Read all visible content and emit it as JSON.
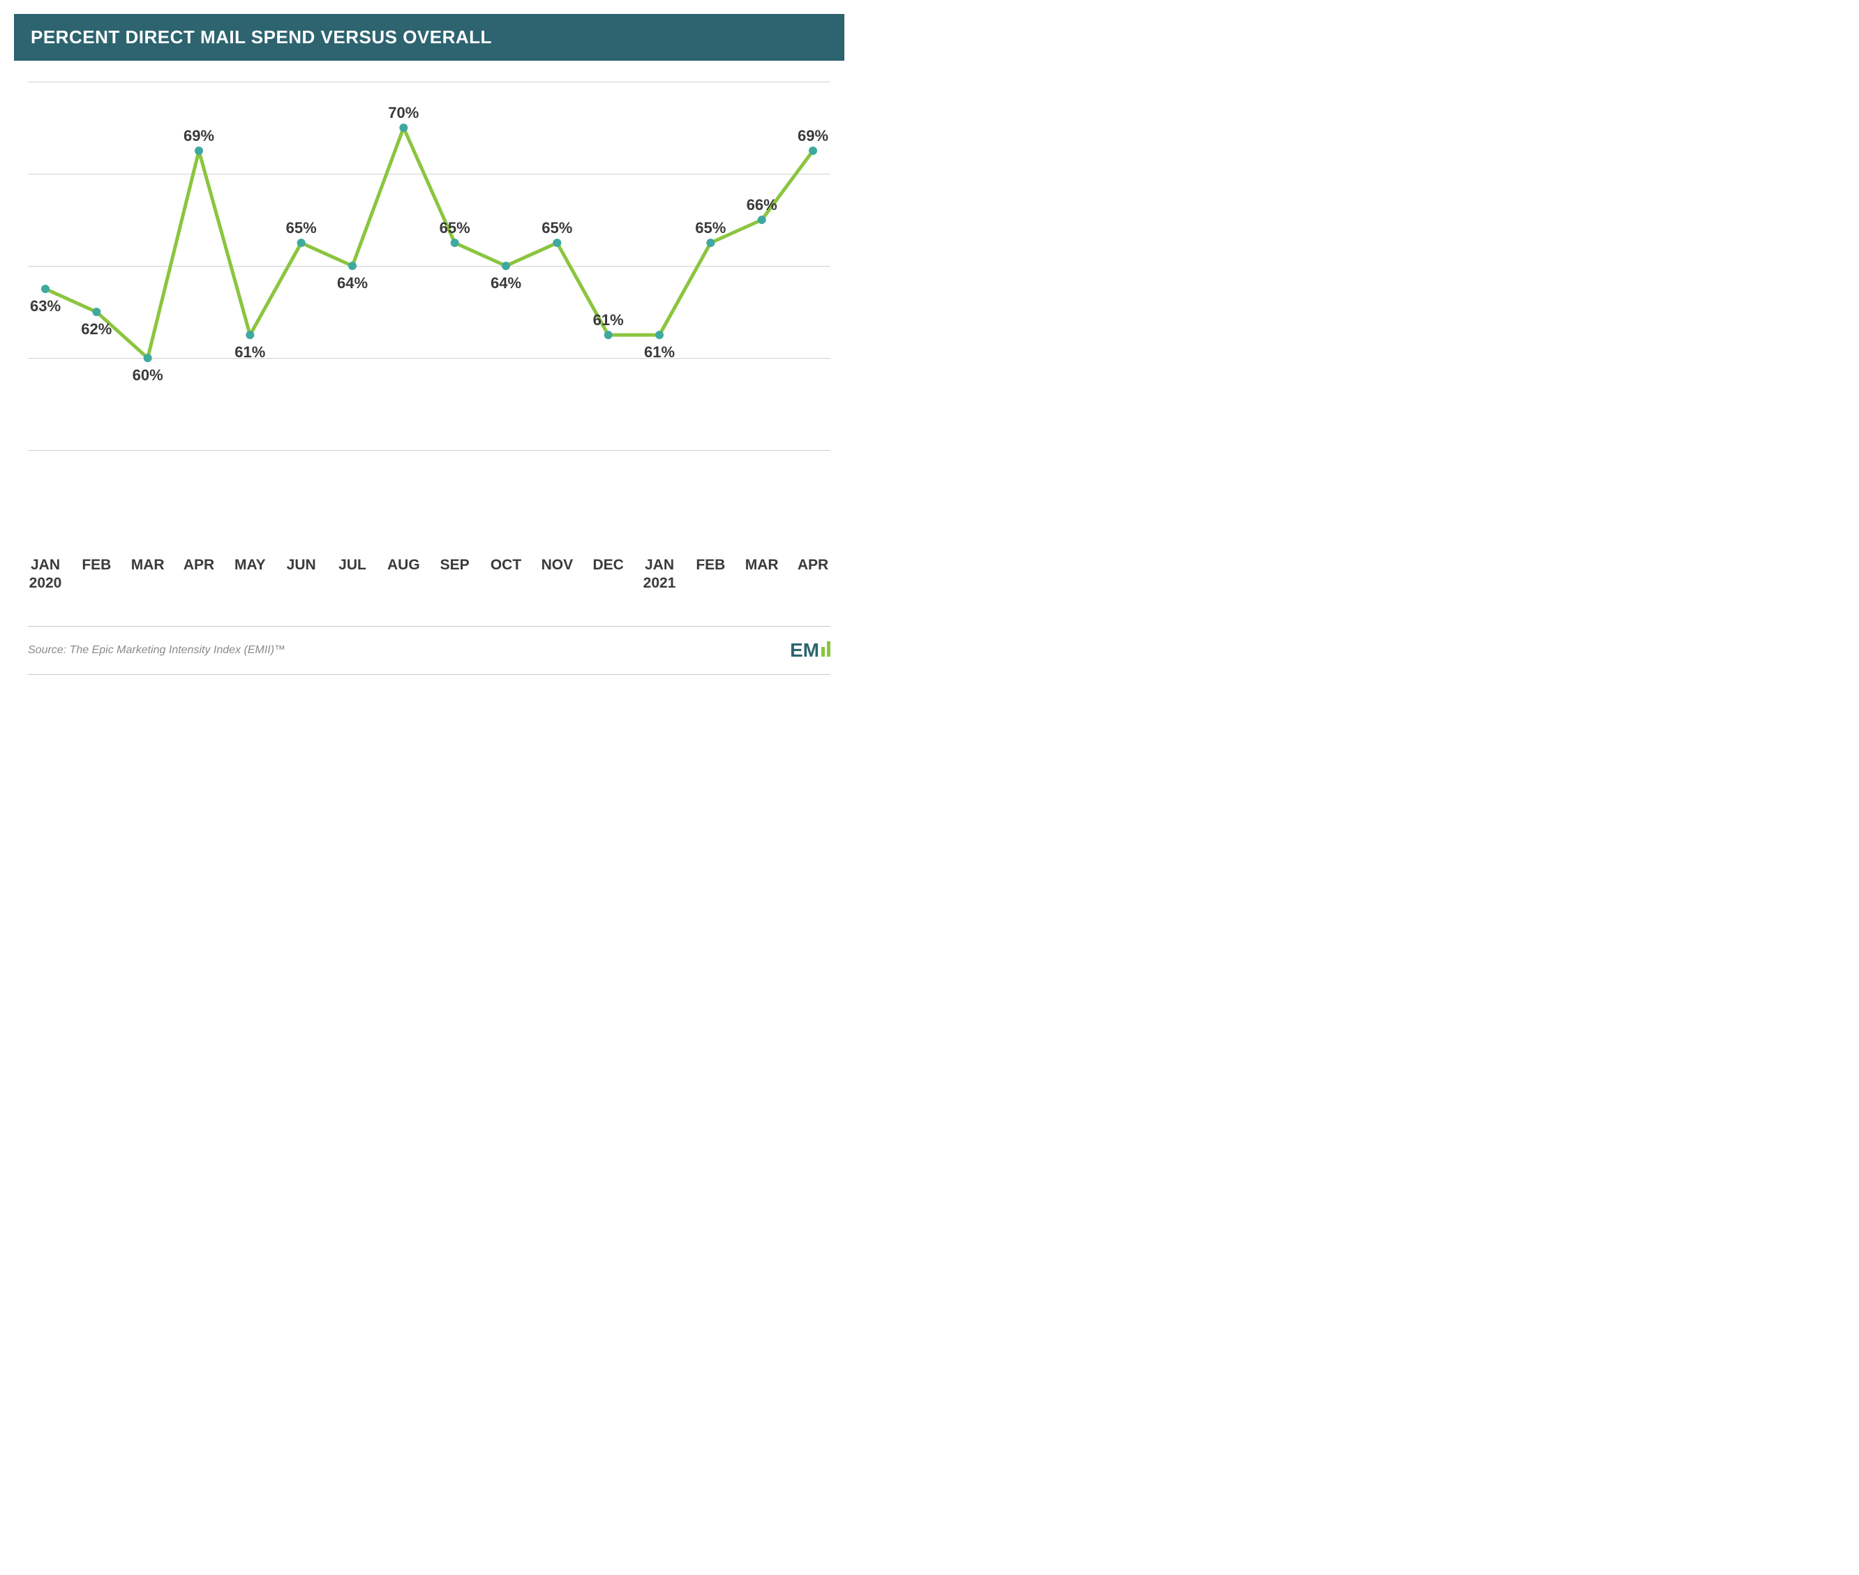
{
  "title": "PERCENT DIRECT MAIL SPEND VERSUS OVERALL",
  "source": "Source: The Epic Marketing Intensity Index (EMII)™",
  "logo_text": "EM",
  "chart": {
    "type": "line",
    "line_color": "#8bc53f",
    "line_width": 5,
    "marker_color": "#3fa9a0",
    "marker_radius": 6,
    "background_color": "#ffffff",
    "grid_color": "#d0d0d0",
    "label_color": "#3a3a3a",
    "title_bar_color": "#2d6470",
    "title_text_color": "#ffffff",
    "ylim": [
      52,
      72
    ],
    "gridlines": [
      56,
      60,
      64,
      68,
      72
    ],
    "label_fontsize": 22,
    "axis_fontsize": 21,
    "points": [
      {
        "x_label": "JAN",
        "x_sub": "2020",
        "value": 63,
        "label": "63%",
        "label_pos": "below"
      },
      {
        "x_label": "FEB",
        "value": 62,
        "label": "62%",
        "label_pos": "below"
      },
      {
        "x_label": "MAR",
        "value": 60,
        "label": "60%",
        "label_pos": "below"
      },
      {
        "x_label": "APR",
        "value": 69,
        "label": "69%",
        "label_pos": "above"
      },
      {
        "x_label": "MAY",
        "value": 61,
        "label": "61%",
        "label_pos": "below"
      },
      {
        "x_label": "JUN",
        "value": 65,
        "label": "65%",
        "label_pos": "above"
      },
      {
        "x_label": "JUL",
        "value": 64,
        "label": "64%",
        "label_pos": "below"
      },
      {
        "x_label": "AUG",
        "value": 70,
        "label": "70%",
        "label_pos": "above"
      },
      {
        "x_label": "SEP",
        "value": 65,
        "label": "65%",
        "label_pos": "above"
      },
      {
        "x_label": "OCT",
        "value": 64,
        "label": "64%",
        "label_pos": "below"
      },
      {
        "x_label": "NOV",
        "value": 65,
        "label": "65%",
        "label_pos": "above"
      },
      {
        "x_label": "DEC",
        "value": 61,
        "label": "61%",
        "label_pos": "above"
      },
      {
        "x_label": "JAN",
        "x_sub": "2021",
        "value": 61,
        "label": "61%",
        "label_pos": "below"
      },
      {
        "x_label": "FEB",
        "value": 65,
        "label": "65%",
        "label_pos": "above"
      },
      {
        "x_label": "MAR",
        "value": 66,
        "label": "66%",
        "label_pos": "above"
      },
      {
        "x_label": "APR",
        "value": 69,
        "label": "69%",
        "label_pos": "above"
      }
    ]
  }
}
